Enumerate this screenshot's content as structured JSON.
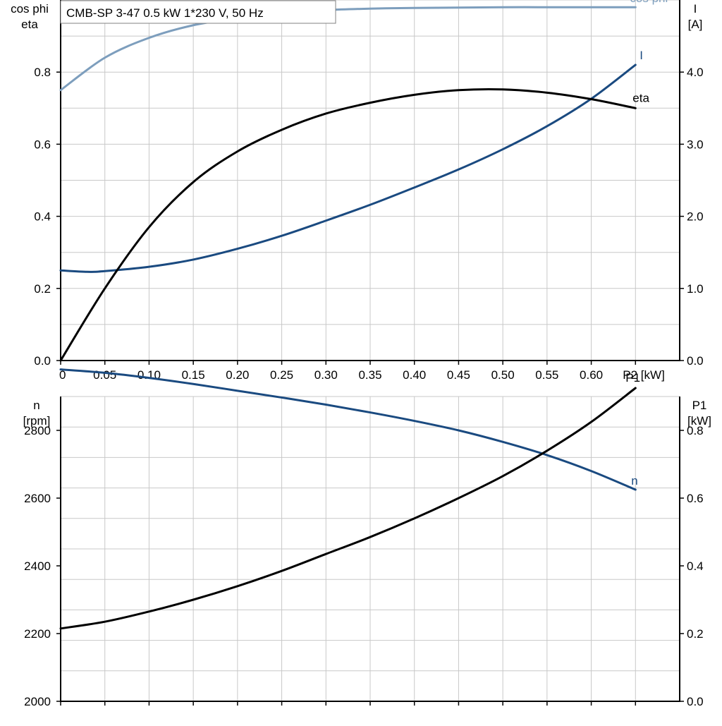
{
  "title": "CMB-SP 3-47   0.5 kW   1*230 V, 50 Hz",
  "colors": {
    "black": "#000000",
    "current": "#1a4a80",
    "speed": "#1a4a80",
    "cosphi": "#7d9ebd",
    "grid": "#c8c8c8"
  },
  "chart_data": [
    {
      "type": "line",
      "xlabel": "P2 [kW]",
      "x_ticks": [
        "0",
        "0.05",
        "0.10",
        "0.15",
        "0.20",
        "0.25",
        "0.30",
        "0.35",
        "0.40",
        "0.45",
        "0.50",
        "0.55",
        "0.60"
      ],
      "x_unit_label": "P2 [kW]",
      "xlim": [
        0,
        0.7
      ],
      "left_axis": {
        "label_line1": "cos phi",
        "label_line2": "eta",
        "ylim": [
          0,
          1.0
        ],
        "ticks": [
          "0.0",
          "0.2",
          "0.4",
          "0.6",
          "0.8"
        ]
      },
      "right_axis": {
        "label_line1": "I",
        "label_line2": "[A]",
        "ylim": [
          0,
          5.0
        ],
        "ticks": [
          "0.0",
          "1.0",
          "2.0",
          "3.0",
          "4.0"
        ]
      },
      "grid": true,
      "series": [
        {
          "name": "cos phi",
          "axis": "left",
          "color": "#7d9ebd",
          "x": [
            0,
            0.05,
            0.1,
            0.15,
            0.2,
            0.25,
            0.3,
            0.35,
            0.4,
            0.45,
            0.5,
            0.55,
            0.6,
            0.65
          ],
          "y": [
            0.75,
            0.84,
            0.895,
            0.93,
            0.95,
            0.965,
            0.972,
            0.976,
            0.978,
            0.979,
            0.98,
            0.98,
            0.98,
            0.98
          ]
        },
        {
          "name": "I",
          "axis": "right",
          "color": "#1a4a80",
          "x": [
            0,
            0.03,
            0.05,
            0.1,
            0.15,
            0.2,
            0.25,
            0.3,
            0.35,
            0.4,
            0.45,
            0.5,
            0.55,
            0.6,
            0.65
          ],
          "y": [
            1.25,
            1.23,
            1.24,
            1.3,
            1.4,
            1.55,
            1.73,
            1.94,
            2.16,
            2.4,
            2.65,
            2.93,
            3.25,
            3.63,
            4.1
          ]
        },
        {
          "name": "eta",
          "axis": "left",
          "color": "#000000",
          "x": [
            0,
            0.05,
            0.1,
            0.15,
            0.2,
            0.25,
            0.3,
            0.35,
            0.4,
            0.45,
            0.5,
            0.55,
            0.6,
            0.65
          ],
          "y": [
            0,
            0.2,
            0.37,
            0.495,
            0.58,
            0.64,
            0.685,
            0.715,
            0.737,
            0.75,
            0.752,
            0.743,
            0.725,
            0.7
          ]
        }
      ]
    },
    {
      "type": "line",
      "xlim": [
        0,
        0.7
      ],
      "grid": true,
      "left_axis": {
        "label_line1": "n",
        "label_line2": "[rpm]",
        "ylim": [
          2000,
          2900
        ],
        "ticks": [
          "2000",
          "2200",
          "2400",
          "2600",
          "2800"
        ]
      },
      "right_axis": {
        "label_line1": "P1",
        "label_line2": "[kW]",
        "ylim": [
          0,
          0.9
        ],
        "ticks": [
          "0.0",
          "0.2",
          "0.4",
          "0.6",
          "0.8"
        ]
      },
      "series": [
        {
          "name": "n",
          "axis": "left",
          "color": "#1a4a80",
          "x": [
            0,
            0.05,
            0.1,
            0.15,
            0.2,
            0.25,
            0.3,
            0.35,
            0.4,
            0.45,
            0.5,
            0.55,
            0.6,
            0.65
          ],
          "y": [
            2980,
            2970,
            2955,
            2937,
            2917,
            2897,
            2876,
            2853,
            2828,
            2800,
            2766,
            2727,
            2680,
            2625
          ]
        },
        {
          "name": "P1",
          "axis": "right",
          "color": "#000000",
          "x": [
            0,
            0.05,
            0.1,
            0.15,
            0.2,
            0.25,
            0.3,
            0.35,
            0.4,
            0.45,
            0.5,
            0.55,
            0.6,
            0.65
          ],
          "y": [
            0.215,
            0.235,
            0.265,
            0.3,
            0.34,
            0.385,
            0.435,
            0.485,
            0.54,
            0.6,
            0.665,
            0.74,
            0.825,
            0.925
          ]
        }
      ]
    }
  ]
}
